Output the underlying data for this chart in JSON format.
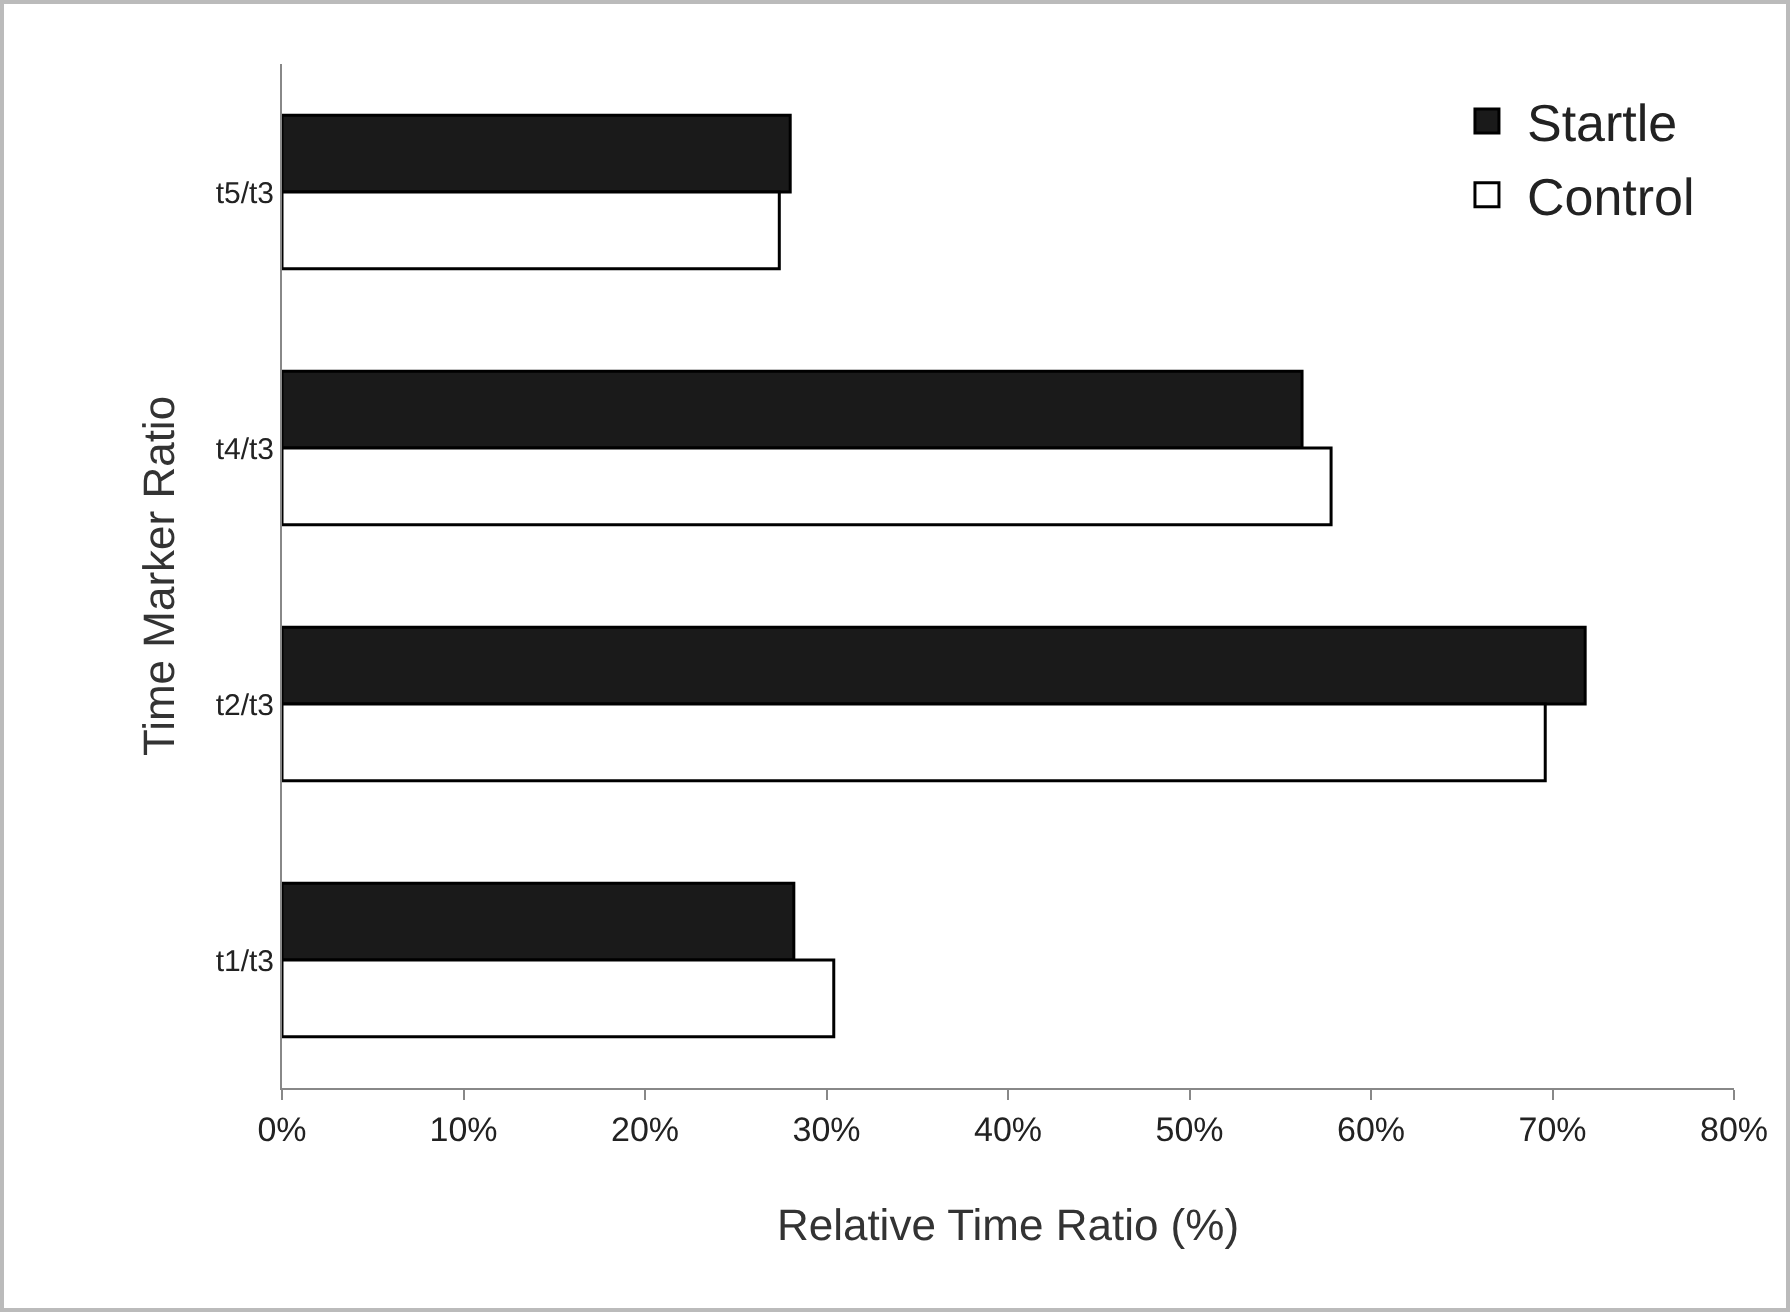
{
  "chart_data": {
    "type": "bar",
    "orientation": "horizontal",
    "xlabel": "Relative Time Ratio (%)",
    "ylabel": "Time Marker Ratio",
    "categories": [
      "t5/t3",
      "t4/t3",
      "t2/t3",
      "t1/t3"
    ],
    "series": [
      {
        "name": "Startle",
        "color": "#1a1a1a",
        "values": [
          28.0,
          56.2,
          71.8,
          28.2
        ]
      },
      {
        "name": "Control",
        "color": "#ffffff",
        "values": [
          27.4,
          57.8,
          69.6,
          30.4
        ]
      }
    ],
    "xlim": [
      0,
      80
    ],
    "xticks": [
      {
        "value": 0,
        "label": "0%"
      },
      {
        "value": 10,
        "label": "10%"
      },
      {
        "value": 20,
        "label": "20%"
      },
      {
        "value": 30,
        "label": "30%"
      },
      {
        "value": 40,
        "label": "40%"
      },
      {
        "value": 50,
        "label": "50%"
      },
      {
        "value": 60,
        "label": "60%"
      },
      {
        "value": 70,
        "label": "70%"
      },
      {
        "value": 80,
        "label": "80%"
      }
    ],
    "grid": false,
    "legend": "top right"
  }
}
